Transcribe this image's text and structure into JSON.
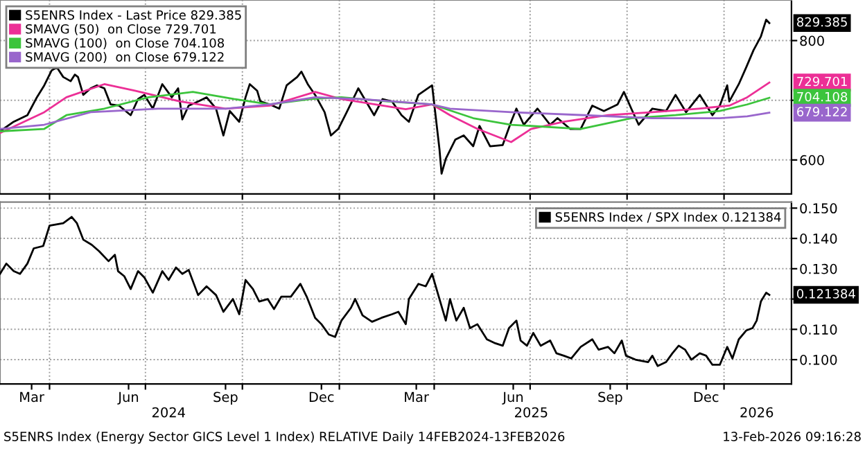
{
  "chart_data": [
    {
      "type": "line",
      "legend": "top left",
      "grid": true,
      "tick_labels": "y",
      "xlim": [
        "2024-02-14",
        "2026-03-06"
      ],
      "ylim": [
        543,
        868
      ],
      "xticks": [
        {
          "value": "2024-04-01",
          "label": null
        },
        {
          "value": "2024-07-01",
          "label": null
        },
        {
          "value": "2024-10-01",
          "label": null
        },
        {
          "value": "2025-01-01",
          "label": null
        },
        {
          "value": "2025-04-01",
          "label": null
        },
        {
          "value": "2025-07-01",
          "label": null
        },
        {
          "value": "2025-10-01",
          "label": null
        },
        {
          "value": "2026-01-01",
          "label": null
        }
      ],
      "yticks": [
        600,
        {
          "value": 700,
          "label": null
        },
        800
      ],
      "series": [
        {
          "name": "S5ENRS Index - Last Price 829.385",
          "color": "#000000",
          "x": [
            "2024-02-14",
            "2024-02-27",
            "2024-03-11",
            "2024-03-20",
            "2024-03-27",
            "2024-04-03",
            "2024-04-08",
            "2024-04-14",
            "2024-04-21",
            "2024-04-25",
            "2024-04-28",
            "2024-05-03",
            "2024-05-10",
            "2024-05-16",
            "2024-05-23",
            "2024-05-29",
            "2024-06-06",
            "2024-06-17",
            "2024-06-24",
            "2024-06-30",
            "2024-07-08",
            "2024-07-17",
            "2024-07-26",
            "2024-08-01",
            "2024-08-05",
            "2024-08-11",
            "2024-08-20",
            "2024-08-28",
            "2024-09-06",
            "2024-09-13",
            "2024-09-19",
            "2024-09-28",
            "2024-10-04",
            "2024-10-08",
            "2024-10-15",
            "2024-10-18",
            "2024-10-27",
            "2024-11-05",
            "2024-11-12",
            "2024-11-22",
            "2024-11-26",
            "2024-12-02",
            "2024-12-09",
            "2024-12-18",
            "2024-12-24",
            "2024-12-31",
            "2025-01-08",
            "2025-01-19",
            "2025-01-25",
            "2025-02-03",
            "2025-02-11",
            "2025-02-20",
            "2025-03-01",
            "2025-03-08",
            "2025-03-17",
            "2025-03-30",
            "2025-04-06",
            "2025-04-08",
            "2025-04-12",
            "2025-04-21",
            "2025-04-29",
            "2025-05-08",
            "2025-05-14",
            "2025-05-24",
            "2025-06-05",
            "2025-06-13",
            "2025-06-18",
            "2025-06-25",
            "2025-07-08",
            "2025-07-20",
            "2025-07-27",
            "2025-08-08",
            "2025-08-18",
            "2025-08-29",
            "2025-09-09",
            "2025-09-22",
            "2025-09-28",
            "2025-10-05",
            "2025-10-12",
            "2025-10-25",
            "2025-11-07",
            "2025-11-16",
            "2025-11-26",
            "2025-12-09",
            "2025-12-21",
            "2025-12-28",
            "2026-01-04",
            "2026-01-06",
            "2026-01-15",
            "2026-01-22",
            "2026-01-29",
            "2026-02-05",
            "2026-02-10",
            "2026-02-13"
          ],
          "values": [
            648,
            664,
            675,
            705,
            725,
            750,
            755,
            739,
            732,
            743,
            739,
            709,
            720,
            725,
            720,
            693,
            691,
            675,
            702,
            709,
            686,
            727,
            705,
            720,
            668,
            691,
            698,
            705,
            686,
            641,
            682,
            664,
            705,
            727,
            716,
            698,
            693,
            686,
            725,
            739,
            748,
            727,
            709,
            680,
            641,
            652,
            680,
            720,
            702,
            675,
            702,
            698,
            675,
            664,
            709,
            725,
            618,
            577,
            602,
            634,
            641,
            623,
            657,
            623,
            625,
            664,
            686,
            659,
            686,
            659,
            670,
            652,
            652,
            691,
            682,
            693,
            714,
            686,
            659,
            686,
            682,
            709,
            680,
            709,
            675,
            691,
            725,
            698,
            727,
            755,
            784,
            807,
            835,
            829.385
          ]
        },
        {
          "name": "SMAVG (50)  on Close 729.701",
          "color": "#ec2f96",
          "x": [
            "2024-02-14",
            "2024-03-27",
            "2024-04-17",
            "2024-05-23",
            "2024-06-21",
            "2024-08-03",
            "2024-09-15",
            "2024-10-27",
            "2024-12-09",
            "2025-01-03",
            "2025-02-11",
            "2025-03-05",
            "2025-03-30",
            "2025-04-16",
            "2025-05-12",
            "2025-06-13",
            "2025-07-02",
            "2025-08-02",
            "2025-09-13",
            "2025-10-25",
            "2025-12-08",
            "2026-01-06",
            "2026-01-23",
            "2026-02-13"
          ],
          "values": [
            645,
            680,
            705,
            727,
            716,
            698,
            686,
            691,
            714,
            702,
            691,
            685,
            693,
            675,
            652,
            630,
            652,
            664,
            675,
            680,
            686,
            691,
            705,
            729.701
          ]
        },
        {
          "name": "SMAVG (100)  on Close 704.108",
          "color": "#3cc43c",
          "x": [
            "2024-02-14",
            "2024-03-27",
            "2024-04-17",
            "2024-05-23",
            "2024-07-04",
            "2024-08-15",
            "2024-09-23",
            "2024-10-27",
            "2024-12-05",
            "2025-01-03",
            "2025-02-16",
            "2025-03-30",
            "2025-05-08",
            "2025-06-13",
            "2025-08-18",
            "2025-10-05",
            "2025-11-16",
            "2025-12-28",
            "2026-01-23",
            "2026-02-13"
          ],
          "values": [
            648,
            652,
            675,
            686,
            705,
            714,
            702,
            693,
            702,
            705,
            698,
            693,
            670,
            659,
            652,
            670,
            675,
            682,
            693,
            704.108
          ]
        },
        {
          "name": "SMAVG (200)  on Close 679.122",
          "color": "#9966cc",
          "x": [
            "2024-02-14",
            "2024-03-27",
            "2024-05-10",
            "2024-07-13",
            "2024-09-15",
            "2024-10-27",
            "2024-12-09",
            "2025-01-21",
            "2025-03-30",
            "2025-04-16",
            "2025-06-13",
            "2025-08-22",
            "2025-10-25",
            "2025-12-28",
            "2026-01-23",
            "2026-02-13"
          ],
          "values": [
            652,
            659,
            680,
            686,
            686,
            693,
            705,
            702,
            693,
            686,
            680,
            675,
            670,
            670,
            673,
            679.122
          ]
        }
      ],
      "annotations": [
        {
          "text": "829.385",
          "x": "2026-02-13",
          "y": 829.385
        },
        {
          "text": "729.701",
          "x": "2026-02-13",
          "y": 729.701
        },
        {
          "text": "704.108",
          "x": "2026-02-13",
          "y": 704.108
        },
        {
          "text": "679.122",
          "x": "2026-02-13",
          "y": 679.122
        }
      ]
    },
    {
      "type": "line",
      "legend": "top right",
      "grid": true,
      "xlim": [
        "2024-02-14",
        "2026-03-06"
      ],
      "ylim": [
        0.092,
        0.152
      ],
      "xticks": [
        {
          "value": "2024-03-15",
          "label": "Mar"
        },
        {
          "value": "2024-04-01",
          "label": null
        },
        {
          "value": "2024-06-15",
          "label": "Jun"
        },
        {
          "value": "2024-07-01",
          "label": null
        },
        {
          "value": "2024-09-15",
          "label": "Sep"
        },
        {
          "value": "2024-10-01",
          "label": null
        },
        {
          "value": "2024-12-15",
          "label": "Dec"
        },
        {
          "value": "2025-01-01",
          "label": null
        },
        {
          "value": "2025-03-15",
          "label": "Mar"
        },
        {
          "value": "2025-04-01",
          "label": null
        },
        {
          "value": "2025-06-15",
          "label": "Jun"
        },
        {
          "value": "2025-07-01",
          "label": null
        },
        {
          "value": "2025-09-15",
          "label": "Sep"
        },
        {
          "value": "2025-10-01",
          "label": null
        },
        {
          "value": "2025-12-15",
          "label": "Dec"
        },
        {
          "value": "2026-01-01",
          "label": null
        }
      ],
      "x2lim": [
        "2024-02-14",
        "2026-03-06"
      ],
      "x2ticks": [
        {
          "value": "2024-07-23",
          "label": "2024"
        },
        {
          "value": "2025-07-02",
          "label": "2025"
        },
        {
          "value": "2026-02-01",
          "label": "2026"
        }
      ],
      "yticks": [
        {
          "value": 0.1,
          "label": "0.100"
        },
        {
          "value": 0.11,
          "label": "0.110"
        },
        {
          "value": 0.12,
          "label": null
        },
        {
          "value": 0.13,
          "label": "0.130"
        },
        {
          "value": 0.14,
          "label": "0.140"
        },
        {
          "value": 0.15,
          "label": "0.150"
        }
      ],
      "series": [
        {
          "name": "S5ENRS Index / SPX Index 0.121384",
          "color": "#000000",
          "x": [
            "2024-02-14",
            "2024-02-20",
            "2024-02-27",
            "2024-03-04",
            "2024-03-11",
            "2024-03-17",
            "2024-03-26",
            "2024-04-01",
            "2024-04-14",
            "2024-04-22",
            "2024-04-27",
            "2024-05-03",
            "2024-05-11",
            "2024-05-18",
            "2024-05-27",
            "2024-06-02",
            "2024-06-05",
            "2024-06-11",
            "2024-06-17",
            "2024-06-24",
            "2024-06-30",
            "2024-07-08",
            "2024-07-17",
            "2024-07-23",
            "2024-07-30",
            "2024-08-05",
            "2024-08-11",
            "2024-08-20",
            "2024-08-28",
            "2024-09-06",
            "2024-09-13",
            "2024-09-22",
            "2024-09-28",
            "2024-10-04",
            "2024-10-11",
            "2024-10-17",
            "2024-10-25",
            "2024-10-31",
            "2024-11-07",
            "2024-11-16",
            "2024-11-25",
            "2024-12-01",
            "2024-12-09",
            "2024-12-15",
            "2024-12-22",
            "2024-12-28",
            "2025-01-03",
            "2025-01-12",
            "2025-01-16",
            "2025-01-23",
            "2025-02-01",
            "2025-02-10",
            "2025-02-20",
            "2025-02-26",
            "2025-03-05",
            "2025-03-08",
            "2025-03-17",
            "2025-03-24",
            "2025-03-30",
            "2025-04-06",
            "2025-04-12",
            "2025-04-16",
            "2025-04-22",
            "2025-04-29",
            "2025-05-05",
            "2025-05-12",
            "2025-05-21",
            "2025-05-29",
            "2025-06-05",
            "2025-06-11",
            "2025-06-18",
            "2025-06-22",
            "2025-06-28",
            "2025-07-04",
            "2025-07-11",
            "2025-07-20",
            "2025-07-26",
            "2025-08-02",
            "2025-08-09",
            "2025-08-18",
            "2025-08-29",
            "2025-09-04",
            "2025-09-13",
            "2025-09-19",
            "2025-09-26",
            "2025-09-30",
            "2025-10-09",
            "2025-10-21",
            "2025-10-25",
            "2025-10-30",
            "2025-11-07",
            "2025-11-13",
            "2025-11-19",
            "2025-11-25",
            "2025-12-01",
            "2025-12-09",
            "2025-12-15",
            "2025-12-21",
            "2025-12-28",
            "2026-01-04",
            "2026-01-09",
            "2026-01-15",
            "2026-01-22",
            "2026-01-28",
            "2026-02-01",
            "2026-02-05",
            "2026-02-10",
            "2026-02-13"
          ],
          "values": [
            0.1283,
            0.1317,
            0.1292,
            0.1283,
            0.1317,
            0.1367,
            0.1375,
            0.1442,
            0.145,
            0.1471,
            0.145,
            0.1396,
            0.1379,
            0.1358,
            0.1325,
            0.1346,
            0.1292,
            0.1275,
            0.1233,
            0.1292,
            0.1271,
            0.1221,
            0.1292,
            0.1263,
            0.1304,
            0.1283,
            0.1296,
            0.1213,
            0.1242,
            0.1213,
            0.1158,
            0.12,
            0.115,
            0.1263,
            0.1233,
            0.1192,
            0.12,
            0.1167,
            0.1208,
            0.1208,
            0.125,
            0.1208,
            0.1138,
            0.1117,
            0.1083,
            0.1075,
            0.1129,
            0.1171,
            0.12,
            0.1146,
            0.1125,
            0.1138,
            0.115,
            0.1158,
            0.1117,
            0.12,
            0.125,
            0.1242,
            0.1283,
            0.12,
            0.1129,
            0.12,
            0.1129,
            0.1171,
            0.1104,
            0.1117,
            0.1067,
            0.1054,
            0.1046,
            0.1104,
            0.1129,
            0.1063,
            0.1046,
            0.1088,
            0.1046,
            0.1063,
            0.1021,
            0.1013,
            0.1004,
            0.1042,
            0.1067,
            0.1033,
            0.1042,
            0.1021,
            0.1063,
            0.1013,
            0.1,
            0.0992,
            0.1013,
            0.0979,
            0.0992,
            0.1021,
            0.1046,
            0.1033,
            0.1,
            0.1021,
            0.1013,
            0.0983,
            0.0983,
            0.1042,
            0.1004,
            0.1067,
            0.1096,
            0.1104,
            0.1129,
            0.1192,
            0.1221,
            0.121384
          ]
        }
      ],
      "annotations": [
        {
          "text": "0.121384",
          "x": "2026-02-13",
          "y": 0.121384
        },
        "S5ENRS Index (Energy Sector GICS Level 1 Index) RELATIVE Daily 14FEB2024-13FEB2026",
        "13-Feb-2026 09:16:28"
      ]
    }
  ]
}
